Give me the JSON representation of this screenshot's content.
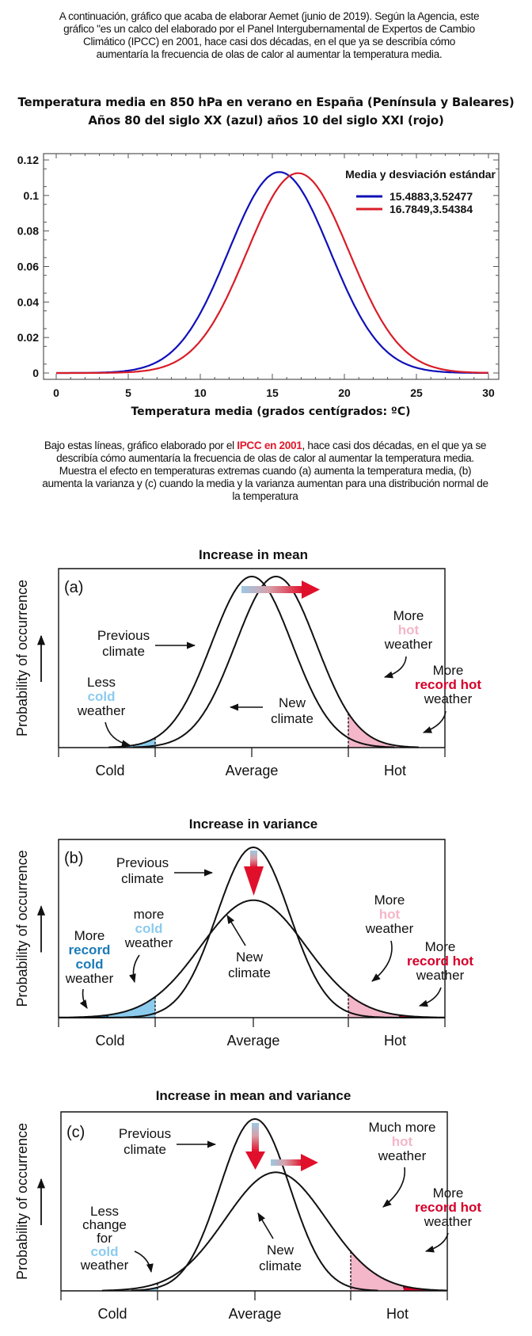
{
  "intro_top": "A continuación, gráfico que acaba de elaborar Aemet (junio de 2019). Según la Agencia, este gráfico \"es un calco del elaborado por el Panel Intergubernamental de Expertos de Cambio Climático (IPCC) en 2001, hace casi dos décadas, en el que ya se describía cómo aumentaría la frecuencia de olas de calor al aumentar la temperatura media.",
  "intro_bottom": {
    "before": "Bajo estas líneas, gráfico elaborado por el ",
    "highlight": "IPCC en 2001",
    "after": ", hace casi dos décadas, en el que ya se describía cómo aumentaría la frecuencia de olas de calor al aumentar la temperatura media. Muestra el efecto en temperaturas extremas cuando (a) aumenta la temperatura media, (b) aumenta la varianza y (c) cuando la media y la varianza aumentan para una distribución normal de la temperatura"
  },
  "colors": {
    "blue_series": "#1010b8",
    "red_series": "#d81e28",
    "cold": "#8ccbee",
    "record_cold": "#1b7bb8",
    "hot": "#f4b6c9",
    "record_hot": "#d6002a",
    "highlight_text": "#e0192c"
  },
  "chart_data": [
    {
      "type": "line",
      "title": "Temperatura media en 850 hPa en verano en España (Península y Baleares)",
      "subtitle": "Años 80 del siglo XX (azul) años 10 del siglo XXI (rojo)",
      "xlabel": "Temperatura media (grados centígrados: ºC)",
      "ylabel": "",
      "xlim": [
        0,
        30
      ],
      "ylim": [
        0,
        0.12
      ],
      "xticks": [
        "0",
        "5",
        "10",
        "15",
        "20",
        "25",
        "30"
      ],
      "yticks": [
        "0",
        "0.02",
        "0.04",
        "0.06",
        "0.08",
        "0.1",
        "0.12"
      ],
      "grid": false,
      "legend_title": "Media y desviación estándar",
      "legend_position": "top-right",
      "series": [
        {
          "name": "15.4883,3.52477",
          "color": "#1010b8",
          "distribution": "normal",
          "mean": 15.4883,
          "std": 3.52477
        },
        {
          "name": "16.7849,3.54384",
          "color": "#d81e28",
          "distribution": "normal",
          "mean": 16.7849,
          "std": 3.54384
        }
      ]
    },
    {
      "type": "area",
      "panel": "(a)",
      "title": "Increase in mean",
      "ylabel": "Probability of occurrence",
      "categories": [
        "Cold",
        "Average",
        "Hot"
      ],
      "series": [
        {
          "name": "Previous climate",
          "mean": 0,
          "std": 1
        },
        {
          "name": "New climate",
          "mean": 0.6,
          "std": 1
        }
      ],
      "annotations": [
        {
          "lines": [
            "Previous",
            "climate"
          ]
        },
        {
          "lines": [
            "New",
            "climate"
          ]
        },
        {
          "lines": [
            "Less",
            "cold",
            "weather"
          ],
          "colored": "cold"
        },
        {
          "lines": [
            "More",
            "hot",
            "weather"
          ],
          "colored": "hot"
        },
        {
          "lines": [
            "More",
            "record hot",
            "weather"
          ],
          "colored": "record hot"
        }
      ]
    },
    {
      "type": "area",
      "panel": "(b)",
      "title": "Increase in variance",
      "ylabel": "Probability of occurrence",
      "categories": [
        "Cold",
        "Average",
        "Hot"
      ],
      "series": [
        {
          "name": "Previous climate",
          "mean": 0,
          "std": 1
        },
        {
          "name": "New climate",
          "mean": 0,
          "std": 1.45
        }
      ],
      "annotations": [
        {
          "lines": [
            "Previous",
            "climate"
          ]
        },
        {
          "lines": [
            "New",
            "climate"
          ]
        },
        {
          "lines": [
            "More",
            "record",
            "cold",
            "weather"
          ],
          "colored": "record cold"
        },
        {
          "lines": [
            "more",
            "cold",
            "weather"
          ],
          "colored": "cold"
        },
        {
          "lines": [
            "More",
            "hot",
            "weather"
          ],
          "colored": "hot"
        },
        {
          "lines": [
            "More",
            "record hot",
            "weather"
          ],
          "colored": "record hot"
        }
      ]
    },
    {
      "type": "area",
      "panel": "(c)",
      "title": "Increase in mean and variance",
      "ylabel": "Probability of occurrence",
      "categories": [
        "Cold",
        "Average",
        "Hot"
      ],
      "series": [
        {
          "name": "Previous climate",
          "mean": 0,
          "std": 1
        },
        {
          "name": "New climate",
          "mean": 0.6,
          "std": 1.45
        }
      ],
      "annotations": [
        {
          "lines": [
            "Previous",
            "climate"
          ]
        },
        {
          "lines": [
            "New",
            "climate"
          ]
        },
        {
          "lines": [
            "Less",
            "change",
            "for",
            "cold",
            "weather"
          ],
          "colored": "cold"
        },
        {
          "lines": [
            "Much more",
            "hot",
            "weather"
          ],
          "colored": "hot"
        },
        {
          "lines": [
            "More",
            "record hot",
            "weather"
          ],
          "colored": "record hot"
        }
      ]
    }
  ]
}
